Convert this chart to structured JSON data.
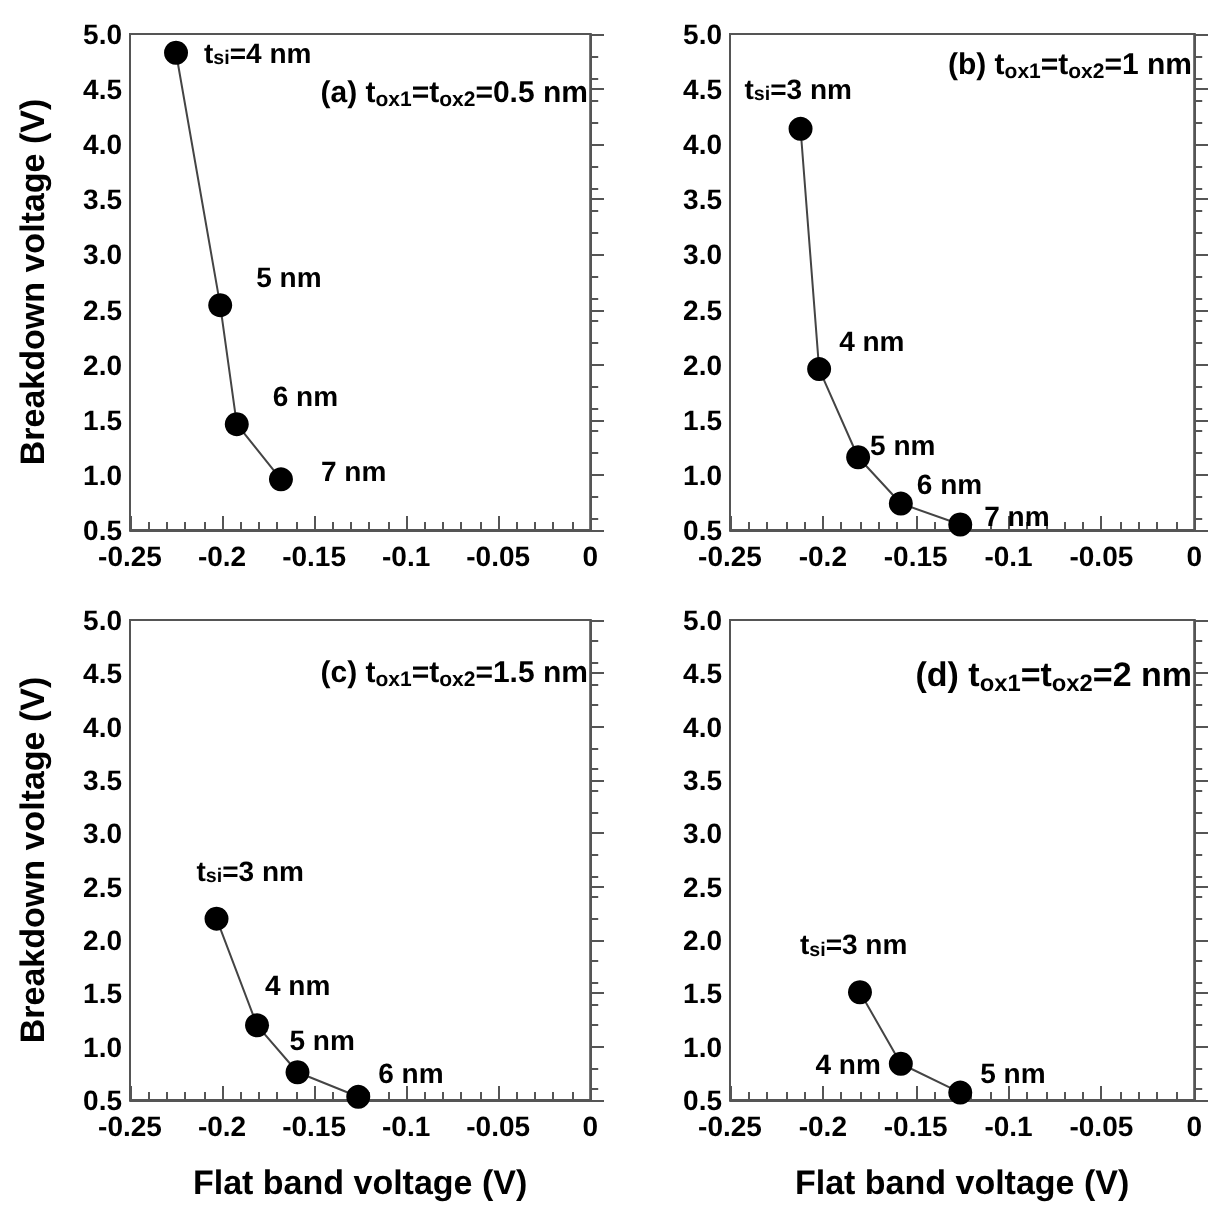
{
  "chart_data": [
    {
      "type": "line",
      "title": "(a) t$_{ox1}$=t$_{ox2}$=0.5 nm",
      "ylabel": "Breakdown voltage (V)",
      "x": [
        -0.225,
        -0.201,
        -0.192,
        -0.168
      ],
      "series": [
        {
          "color": "#000000",
          "values": [
            4.83,
            2.54,
            1.46,
            0.96
          ]
        }
      ],
      "annotations": [
        {
          "text": "t$_{si}$=4 nm",
          "x": -0.225,
          "y": 4.83
        },
        {
          "text": "5 nm",
          "x": -0.201,
          "y": 2.54
        },
        {
          "text": "6 nm",
          "x": -0.192,
          "y": 1.46
        },
        {
          "text": "7 nm",
          "x": -0.168,
          "y": 0.96
        }
      ],
      "xlim": [
        -0.25,
        0
      ],
      "xticks": [
        -0.25,
        -0.2,
        -0.15,
        -0.1,
        -0.05,
        0
      ],
      "ylim": [
        0.5,
        5
      ],
      "yticks": [
        0.5,
        {
          "value": 1,
          "label": "1.0"
        },
        1.5,
        {
          "value": 2,
          "label": "2.0"
        },
        2.5,
        {
          "value": 3,
          "label": "3.0"
        },
        3.5,
        {
          "value": 4,
          "label": "4.0"
        },
        4.5,
        {
          "value": 5,
          "label": "5.0"
        }
      ],
      "marker": "circle",
      "line_style": "solid",
      "grid": false
    },
    {
      "type": "line",
      "title": "(b) t$_{ox1}$=t$_{ox2}$=1 nm",
      "x": [
        -0.212,
        -0.202,
        -0.181,
        -0.158,
        -0.126
      ],
      "series": [
        {
          "color": "#000000",
          "values": [
            4.14,
            1.96,
            1.16,
            0.74,
            0.55
          ]
        }
      ],
      "annotations": [
        {
          "text": "t$_{si}$=3 nm",
          "x": -0.212,
          "y": 4.14
        },
        {
          "text": "4 nm",
          "x": -0.202,
          "y": 1.96
        },
        {
          "text": "5 nm",
          "x": -0.181,
          "y": 1.16
        },
        {
          "text": "6 nm",
          "x": -0.158,
          "y": 0.74
        },
        {
          "text": "7 nm",
          "x": -0.126,
          "y": 0.55
        }
      ],
      "xlim": [
        -0.25,
        0
      ],
      "xticks": [
        -0.25,
        -0.2,
        -0.15,
        -0.1,
        -0.05,
        0
      ],
      "ylim": [
        0.5,
        5
      ],
      "yticks": [
        0.5,
        {
          "value": 1,
          "label": "1.0"
        },
        1.5,
        {
          "value": 2,
          "label": "2.0"
        },
        2.5,
        {
          "value": 3,
          "label": "3.0"
        },
        3.5,
        {
          "value": 4,
          "label": "4.0"
        },
        4.5,
        {
          "value": 5,
          "label": "5.0"
        }
      ],
      "marker": "circle",
      "line_style": "solid",
      "grid": false
    },
    {
      "type": "line",
      "title": "(c) t$_{ox1}$=t$_{ox2}$=1.5 nm",
      "xlabel": "Flat band voltage (V)",
      "ylabel": "Breakdown voltage (V)",
      "x": [
        -0.203,
        -0.181,
        -0.159,
        -0.126
      ],
      "series": [
        {
          "color": "#000000",
          "values": [
            2.2,
            1.2,
            0.76,
            0.53
          ]
        }
      ],
      "annotations": [
        {
          "text": "t$_{si}$=3 nm",
          "x": -0.203,
          "y": 2.2
        },
        {
          "text": "4 nm",
          "x": -0.181,
          "y": 1.2
        },
        {
          "text": "5 nm",
          "x": -0.159,
          "y": 0.76
        },
        {
          "text": "6 nm",
          "x": -0.126,
          "y": 0.53
        }
      ],
      "xlim": [
        -0.25,
        0
      ],
      "xticks": [
        -0.25,
        -0.2,
        -0.15,
        -0.1,
        -0.05,
        0
      ],
      "ylim": [
        0.5,
        5
      ],
      "yticks": [
        0.5,
        {
          "value": 1,
          "label": "1.0"
        },
        1.5,
        {
          "value": 2,
          "label": "2.0"
        },
        2.5,
        {
          "value": 3,
          "label": "3.0"
        },
        3.5,
        {
          "value": 4,
          "label": "4.0"
        },
        4.5,
        {
          "value": 5,
          "label": "5.0"
        }
      ],
      "marker": "circle",
      "line_style": "solid",
      "grid": false
    },
    {
      "type": "line",
      "title": "(d) t$_{ox1}$=t$_{ox2}$=2 nm",
      "xlabel": "Flat band voltage (V)",
      "x": [
        -0.18,
        -0.158,
        -0.126
      ],
      "series": [
        {
          "color": "#000000",
          "values": [
            1.51,
            0.84,
            0.57
          ]
        }
      ],
      "annotations": [
        {
          "text": "t$_{si}$=3 nm",
          "x": -0.18,
          "y": 1.51
        },
        {
          "text": "4 nm",
          "x": -0.158,
          "y": 0.84
        },
        {
          "text": "5 nm",
          "x": -0.126,
          "y": 0.57
        }
      ],
      "xlim": [
        -0.25,
        0
      ],
      "xticks": [
        -0.25,
        -0.2,
        -0.15,
        -0.1,
        -0.05,
        0
      ],
      "ylim": [
        0.5,
        5
      ],
      "yticks": [
        0.5,
        {
          "value": 1,
          "label": "1.0"
        },
        1.5,
        {
          "value": 2,
          "label": "2.0"
        },
        2.5,
        {
          "value": 3,
          "label": "3.0"
        },
        3.5,
        {
          "value": 4,
          "label": "4.0"
        },
        4.5,
        {
          "value": 5,
          "label": "5.0"
        }
      ],
      "marker": "circle",
      "line_style": "solid",
      "grid": false
    }
  ]
}
